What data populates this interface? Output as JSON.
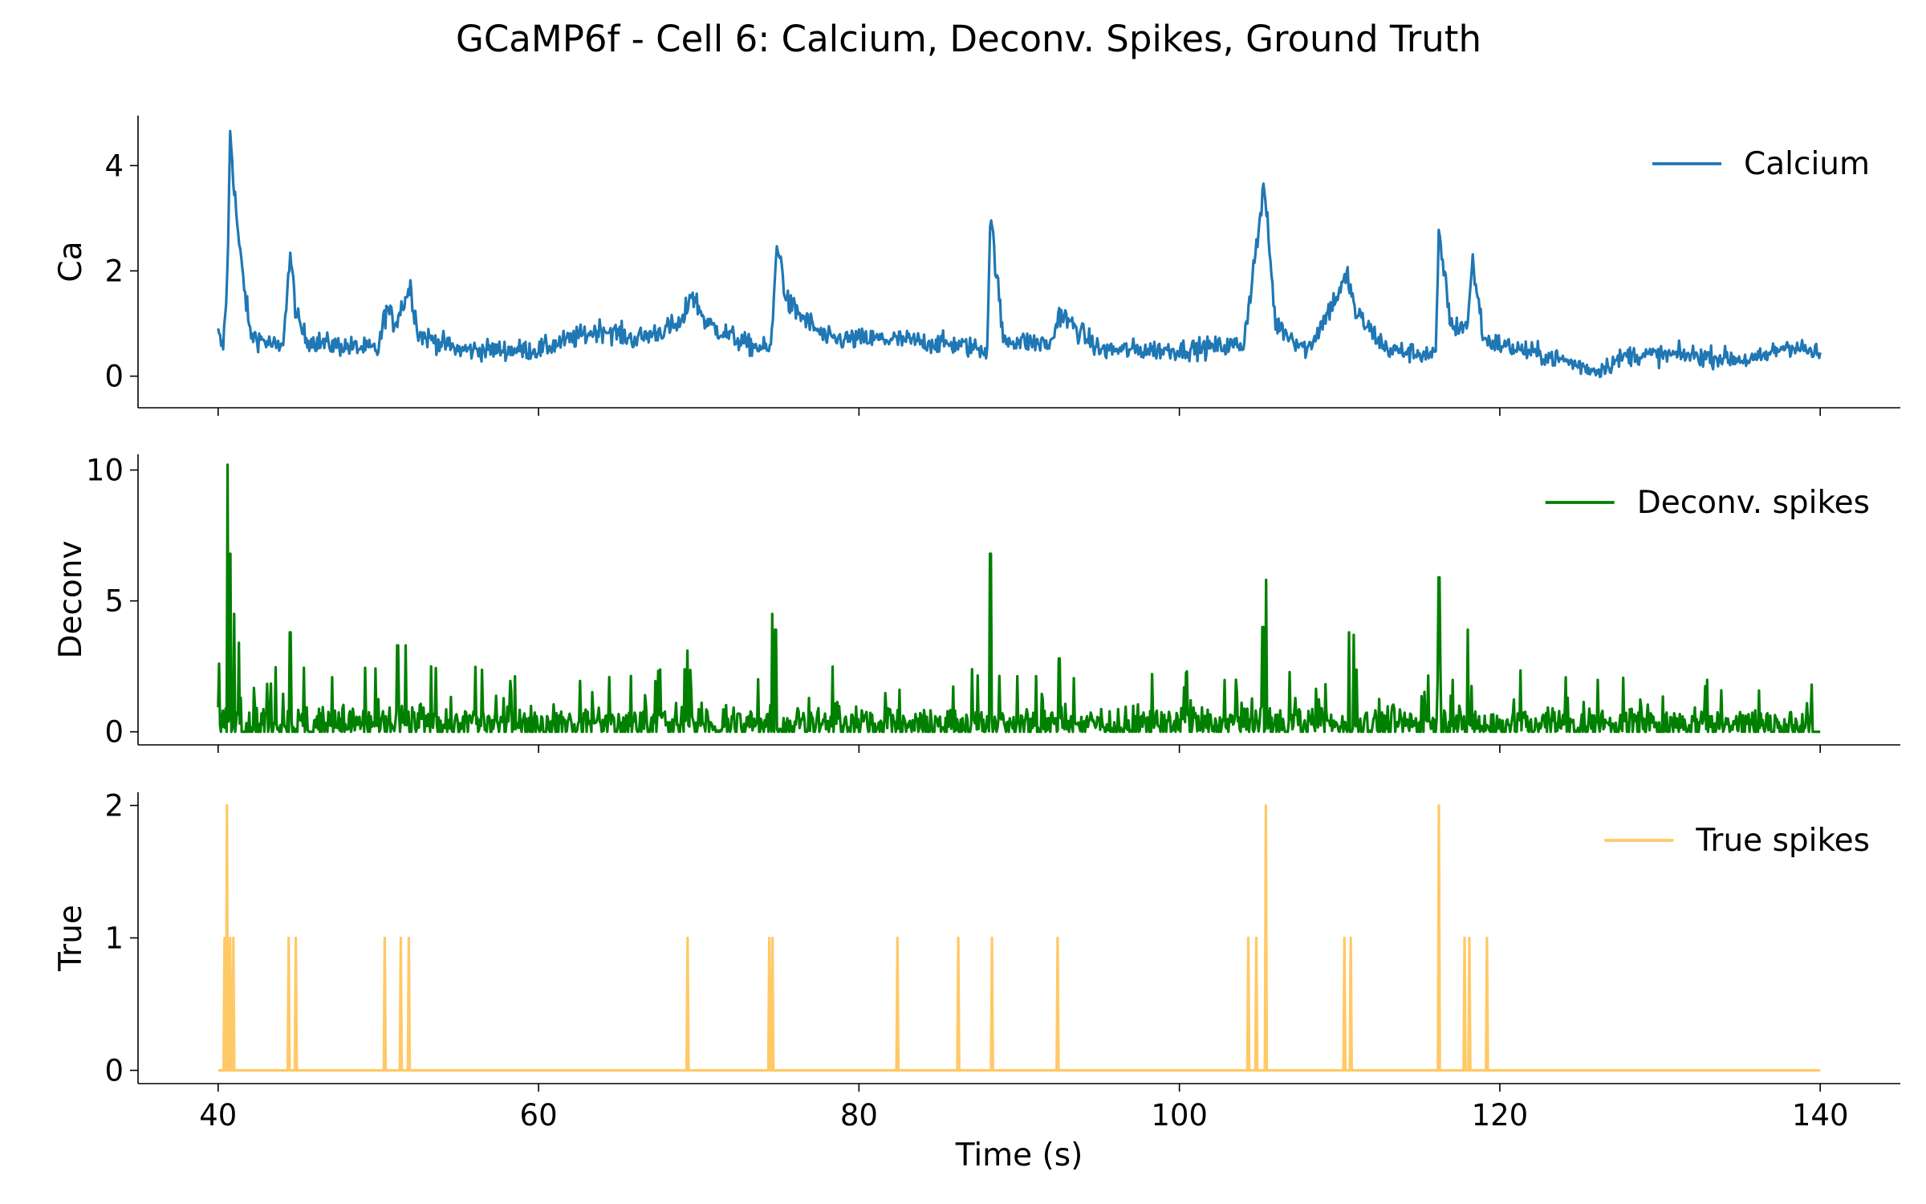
{
  "figure": {
    "title": "GCaMP6f - Cell 6: Calcium, Deconv. Spikes, Ground Truth",
    "xlabel": "Time (s)"
  },
  "chart_data": [
    {
      "type": "line",
      "id": "calcium",
      "ylabel": "Ca",
      "xlim": [
        35,
        145
      ],
      "ylim": [
        -0.6,
        4.95
      ],
      "xticks": [
        40,
        60,
        80,
        100,
        120,
        140
      ],
      "yticks": [
        0,
        2,
        4
      ],
      "legend": "top-right",
      "series": [
        {
          "name": "Calcium",
          "color": "#1f77b4",
          "x": [
            40,
            40.3,
            40.6,
            40.75,
            41.0,
            41.3,
            42,
            44,
            44.5,
            44.9,
            45.5,
            47,
            50,
            50.5,
            51,
            52,
            52.5,
            55,
            60,
            64,
            66,
            69,
            69.5,
            70.5,
            73,
            74.5,
            74.9,
            75.5,
            78,
            82,
            86,
            88,
            88.2,
            89,
            92,
            92.5,
            95,
            100,
            104,
            105.3,
            106,
            108,
            110.5,
            111,
            113,
            116,
            116.2,
            117,
            118,
            118.3,
            119,
            120,
            124,
            126,
            128,
            132,
            136,
            138,
            140
          ],
          "y": [
            0.8,
            0.5,
            2.0,
            4.7,
            3.6,
            2.5,
            0.8,
            0.5,
            2.3,
            1.1,
            0.7,
            0.6,
            0.5,
            1.3,
            1.0,
            1.7,
            0.8,
            0.5,
            0.5,
            0.9,
            0.7,
            1.0,
            1.6,
            1.0,
            0.6,
            0.5,
            2.6,
            1.4,
            0.7,
            0.7,
            0.6,
            0.5,
            3.1,
            0.7,
            0.6,
            1.2,
            0.5,
            0.5,
            0.6,
            3.6,
            1.0,
            0.5,
            1.9,
            1.2,
            0.5,
            0.4,
            2.7,
            0.9,
            1.0,
            2.2,
            0.7,
            0.6,
            0.3,
            0.1,
            0.4,
            0.4,
            0.3,
            0.6,
            0.4
          ]
        }
      ]
    },
    {
      "type": "line",
      "id": "deconv",
      "ylabel": "Deconv",
      "xlim": [
        35,
        145
      ],
      "ylim": [
        -0.5,
        10.6
      ],
      "xticks": [
        40,
        60,
        80,
        100,
        120,
        140
      ],
      "yticks": [
        0,
        5,
        10
      ],
      "legend": "top-right",
      "series": [
        {
          "name": "Deconv. spikes",
          "color": "#008000",
          "baseline_noise": 0.7,
          "x_range": [
            40,
            140
          ],
          "peaks": [
            {
              "x": 40.05,
              "y": 2.6
            },
            {
              "x": 40.6,
              "y": 10.2
            },
            {
              "x": 40.75,
              "y": 6.8
            },
            {
              "x": 41.0,
              "y": 4.5
            },
            {
              "x": 41.3,
              "y": 3.4
            },
            {
              "x": 44.5,
              "y": 3.8
            },
            {
              "x": 51.2,
              "y": 3.3
            },
            {
              "x": 51.7,
              "y": 3.3
            },
            {
              "x": 53.3,
              "y": 2.5
            },
            {
              "x": 69.3,
              "y": 3.1
            },
            {
              "x": 74.6,
              "y": 4.5
            },
            {
              "x": 74.8,
              "y": 3.9
            },
            {
              "x": 88.2,
              "y": 6.8
            },
            {
              "x": 92.5,
              "y": 2.8
            },
            {
              "x": 105.2,
              "y": 4.0
            },
            {
              "x": 105.4,
              "y": 5.8
            },
            {
              "x": 110.6,
              "y": 3.8
            },
            {
              "x": 110.9,
              "y": 3.7
            },
            {
              "x": 116.2,
              "y": 5.9
            },
            {
              "x": 118.0,
              "y": 3.9
            },
            {
              "x": 139.5,
              "y": 1.8
            }
          ]
        }
      ]
    },
    {
      "type": "line",
      "id": "truth",
      "ylabel": "True",
      "xlim": [
        35,
        145
      ],
      "ylim": [
        -0.1,
        2.1
      ],
      "xticks": [
        40,
        60,
        80,
        100,
        120,
        140
      ],
      "yticks": [
        0,
        1,
        2
      ],
      "legend": "top-right",
      "series": [
        {
          "name": "True spikes",
          "color": "#ffc966",
          "x_range": [
            40,
            140
          ],
          "spikes": [
            {
              "x": 40.4,
              "y": 1
            },
            {
              "x": 40.55,
              "y": 2
            },
            {
              "x": 40.75,
              "y": 1
            },
            {
              "x": 40.95,
              "y": 1
            },
            {
              "x": 44.4,
              "y": 1
            },
            {
              "x": 44.85,
              "y": 1
            },
            {
              "x": 50.4,
              "y": 1
            },
            {
              "x": 51.4,
              "y": 1
            },
            {
              "x": 51.9,
              "y": 1
            },
            {
              "x": 69.3,
              "y": 1
            },
            {
              "x": 74.4,
              "y": 1
            },
            {
              "x": 74.6,
              "y": 1
            },
            {
              "x": 82.4,
              "y": 1
            },
            {
              "x": 86.2,
              "y": 1
            },
            {
              "x": 88.3,
              "y": 1
            },
            {
              "x": 92.4,
              "y": 1
            },
            {
              "x": 104.3,
              "y": 1
            },
            {
              "x": 104.8,
              "y": 1
            },
            {
              "x": 105.4,
              "y": 2
            },
            {
              "x": 110.3,
              "y": 1
            },
            {
              "x": 110.7,
              "y": 1
            },
            {
              "x": 116.2,
              "y": 2
            },
            {
              "x": 117.8,
              "y": 1
            },
            {
              "x": 118.1,
              "y": 1
            },
            {
              "x": 119.2,
              "y": 1
            }
          ]
        }
      ]
    }
  ]
}
